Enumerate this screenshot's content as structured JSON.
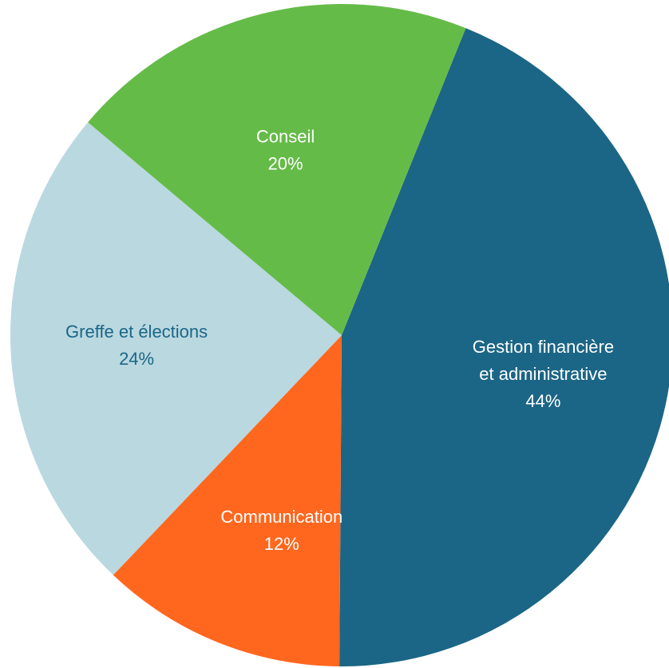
{
  "chart_data": {
    "type": "pie",
    "slices": [
      {
        "label_lines": [
          "Gestion financière",
          "et administrative"
        ],
        "percent_label": "44%",
        "value": 44,
        "color": "#1B6686",
        "label_color": "#FFFFFF"
      },
      {
        "label_lines": [
          "Communication"
        ],
        "percent_label": "12%",
        "value": 12,
        "color": "#FF671F",
        "label_color": "#FFFFFF"
      },
      {
        "label_lines": [
          "Greffe et élections"
        ],
        "percent_label": "24%",
        "value": 24,
        "color": "#BAD8E0",
        "label_color": "#1B6686"
      },
      {
        "label_lines": [
          "Conseil"
        ],
        "percent_label": "20%",
        "value": 20,
        "color": "#65BB48",
        "label_color": "#FFFFFF"
      }
    ]
  }
}
